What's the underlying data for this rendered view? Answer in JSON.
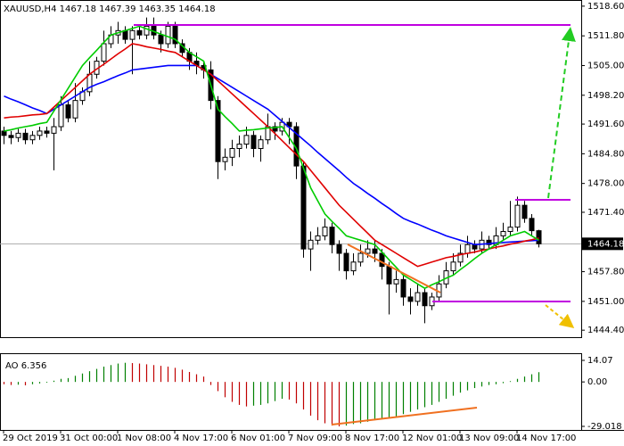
{
  "chart_data": [
    {
      "type": "candlestick",
      "title": "XAUUSD,H4  1467.18 1467.39 1463.35 1464.18",
      "categories": [
        "29 Oct 2019",
        null,
        null,
        null,
        null,
        null,
        null,
        null,
        "31 Oct 00:00",
        null,
        null,
        null,
        null,
        null,
        null,
        null,
        "1 Nov 08:00",
        null,
        null,
        null,
        null,
        null,
        null,
        null,
        "4 Nov 17:00",
        null,
        null,
        null,
        null,
        null,
        null,
        null,
        "6 Nov 01:00",
        null,
        null,
        null,
        null,
        null,
        null,
        null,
        "7 Nov 09:00",
        null,
        null,
        null,
        null,
        null,
        null,
        null,
        "8 Nov 17:00",
        null,
        null,
        null,
        null,
        null,
        null,
        null,
        "12 Nov 01:00",
        null,
        null,
        null,
        null,
        null,
        null,
        null,
        "13 Nov 09:00",
        null,
        null,
        null,
        null,
        null,
        null,
        null,
        "14 Nov 17:00",
        null,
        null,
        null
      ],
      "open": [
        1490,
        1489,
        1488.5,
        1489.5,
        1488,
        1489,
        1490,
        1489.5,
        1491,
        1496,
        1493,
        1497,
        1499,
        1503,
        1506,
        1510,
        1512,
        1513,
        1511,
        1513,
        1512,
        1514,
        1512,
        1510,
        1514,
        1510,
        1508,
        1506,
        1505,
        1504,
        1497,
        1483,
        1484,
        1486,
        1487,
        1489,
        1486,
        1488,
        1491,
        1490,
        1492,
        1491,
        1482,
        1463,
        1465,
        1466,
        1468,
        1464,
        1462,
        1458,
        1460,
        1462,
        1463,
        1462,
        1459,
        1455,
        1456,
        1452,
        1451,
        1453,
        1450,
        1452,
        1455,
        1458,
        1460,
        1462,
        1464,
        1463,
        1465,
        1464,
        1466,
        1467,
        1468,
        1473,
        1470,
        1467.18
      ],
      "high": [
        1491,
        1490,
        1490.5,
        1490.5,
        1490,
        1491,
        1491,
        1493,
        1498,
        1497,
        1501,
        1500,
        1506,
        1507,
        1513,
        1514,
        1515,
        1514,
        1514,
        1514,
        1516,
        1516,
        1513,
        1515,
        1515,
        1511,
        1509,
        1508,
        1506,
        1506,
        1498,
        1486,
        1488,
        1489,
        1491,
        1490,
        1489,
        1494,
        1492,
        1493,
        1493,
        1492,
        1483,
        1467,
        1468,
        1470,
        1469,
        1465,
        1463,
        1462,
        1464,
        1465,
        1465,
        1463,
        1460,
        1458,
        1457,
        1454,
        1455,
        1454,
        1453,
        1457,
        1460,
        1462,
        1464,
        1466,
        1465,
        1467,
        1466,
        1468,
        1469,
        1474,
        1475,
        1474,
        1471,
        1467.39
      ],
      "low": [
        1487,
        1487,
        1487.5,
        1487,
        1487,
        1488,
        1488.5,
        1481,
        1490,
        1492,
        1492,
        1496,
        1498,
        1502,
        1505,
        1509,
        1510,
        1510,
        1503,
        1511,
        1511,
        1511,
        1508,
        1509,
        1509,
        1507,
        1504,
        1503,
        1502,
        1495,
        1479,
        1481,
        1482,
        1484,
        1486,
        1484,
        1483,
        1487,
        1488,
        1489,
        1487,
        1479,
        1461,
        1458,
        1464,
        1465,
        1462,
        1458,
        1456,
        1457,
        1459,
        1461,
        1460,
        1456,
        1448,
        1453,
        1450,
        1448,
        1450,
        1446,
        1449,
        1451,
        1454,
        1457,
        1459,
        1461,
        1462,
        1462,
        1463,
        1463,
        1465,
        1466,
        1467,
        1469,
        1466,
        1463.35
      ],
      "close": [
        1489,
        1488.5,
        1489.5,
        1488,
        1489,
        1490,
        1489.5,
        1491,
        1496,
        1493,
        1497,
        1499,
        1503,
        1506,
        1510,
        1512,
        1513,
        1511,
        1513,
        1512,
        1514,
        1512,
        1510,
        1514,
        1510,
        1508,
        1506,
        1505,
        1504,
        1497,
        1483,
        1484,
        1486,
        1487,
        1489,
        1486,
        1488,
        1491,
        1490,
        1492,
        1491,
        1482,
        1463,
        1465,
        1466,
        1468,
        1464,
        1462,
        1458,
        1460,
        1462,
        1463,
        1462,
        1459,
        1455,
        1456,
        1452,
        1451,
        1453,
        1450,
        1452,
        1455,
        1458,
        1460,
        1462,
        1464,
        1463,
        1465,
        1464,
        1466,
        1467,
        1468,
        1473,
        1470,
        1467.18,
        1464.18
      ],
      "up_color": "#ffffff",
      "down_color": "#000000",
      "wick_color": "#000000",
      "series": [
        {
          "color": "#0000ff",
          "values": [
            1498,
            1497.3,
            1496.7,
            1496,
            1495.3,
            1494.7,
            1494,
            1495,
            1496,
            1497,
            1498,
            1499,
            1500,
            1500.7,
            1501.3,
            1502,
            1502.7,
            1503.3,
            1504,
            1504.2,
            1504.4,
            1504.6,
            1504.8,
            1505,
            1505,
            1505,
            1505,
            1505,
            1504,
            1503,
            1502,
            1501,
            1500,
            1499,
            1498,
            1497,
            1496,
            1495,
            1493.6,
            1492.2,
            1490.8,
            1489.4,
            1488,
            1486.6,
            1485.1,
            1483.7,
            1482.3,
            1480.9,
            1479.4,
            1478,
            1476.9,
            1475.7,
            1474.6,
            1473.4,
            1472.3,
            1471.1,
            1470,
            1469.3,
            1468.7,
            1468,
            1467.3,
            1466.7,
            1466,
            1465.5,
            1465,
            1464.5,
            1464,
            1464.1,
            1464.2,
            1464.4,
            1464.5,
            1464.6,
            1464.7,
            1464.8,
            1464.9,
            1465
          ]
        },
        {
          "color": "#e00000",
          "values": [
            1493,
            1493.2,
            1493.3,
            1493.5,
            1493.7,
            1493.8,
            1494,
            1495.5,
            1497,
            1498.5,
            1500,
            1501.5,
            1503,
            1504.2,
            1505.3,
            1506.5,
            1507.7,
            1508.8,
            1510,
            1509.7,
            1509.3,
            1509,
            1508.7,
            1508.3,
            1508,
            1507,
            1506,
            1505,
            1504,
            1503,
            1501.5,
            1500,
            1498.5,
            1497,
            1495.5,
            1494,
            1492.5,
            1491,
            1489.4,
            1487.8,
            1486.2,
            1484.6,
            1483,
            1481,
            1479,
            1477,
            1475,
            1473,
            1471.4,
            1469.8,
            1468.2,
            1466.6,
            1465,
            1464,
            1463,
            1462,
            1461,
            1460,
            1459,
            1459.5,
            1460,
            1460.5,
            1461,
            1461.3,
            1461.7,
            1462,
            1462.3,
            1462.7,
            1463,
            1463.4,
            1463.7,
            1464.1,
            1464.4,
            1464.8,
            1465.1,
            1465.5
          ]
        },
        {
          "color": "#00cc00",
          "values": [
            1490,
            1490.3,
            1490.7,
            1491,
            1491.3,
            1491.7,
            1492,
            1494.6,
            1497.2,
            1499.8,
            1502.4,
            1505,
            1506.8,
            1508.5,
            1510.3,
            1512,
            1512.5,
            1513,
            1513.5,
            1514,
            1513.4,
            1512.8,
            1512.2,
            1511.6,
            1511,
            1509.5,
            1508,
            1507,
            1506,
            1500.5,
            1495,
            1493.3,
            1491.7,
            1490,
            1490.2,
            1490.3,
            1490.5,
            1490.7,
            1490.8,
            1491,
            1488.5,
            1486,
            1481.5,
            1477,
            1474,
            1471,
            1469.3,
            1467.7,
            1466,
            1465.5,
            1465,
            1464.5,
            1464,
            1462.3,
            1460.5,
            1458.8,
            1457,
            1456,
            1455,
            1454,
            1454.8,
            1455.5,
            1456.3,
            1457,
            1458.3,
            1459.5,
            1460.8,
            1462,
            1463,
            1464,
            1465,
            1466,
            1466.5,
            1467,
            1466,
            1465
          ]
        }
      ],
      "current_price": 1464.18,
      "ylim": [
        1442.8,
        1519.6
      ],
      "yticks": [
        {
          "value": 1518.6,
          "label": "1518.60"
        },
        {
          "value": 1511.8,
          "label": "1511.80"
        },
        {
          "value": 1505,
          "label": "1505.00"
        },
        {
          "value": 1498.2,
          "label": "1498.20"
        },
        {
          "value": 1491.6,
          "label": "1491.60"
        },
        {
          "value": 1484.8,
          "label": "1484.80"
        },
        {
          "value": 1478,
          "label": "1478.00"
        },
        {
          "value": 1471.4,
          "label": "1471.40"
        },
        {
          "value": 1457.8,
          "label": "1457.80"
        },
        {
          "value": 1451,
          "label": "1451.00"
        },
        {
          "value": 1444.4,
          "label": "1444.40"
        }
      ],
      "grid": false
    },
    {
      "type": "bar",
      "title": "AO 6.356",
      "values": [
        -1.5,
        -2,
        -1.8,
        -2.2,
        -1.5,
        -1,
        -0.5,
        0.8,
        2,
        2.5,
        4,
        5.5,
        7,
        8.5,
        10,
        11,
        12,
        12.5,
        12.3,
        12,
        11.5,
        11,
        10.5,
        10,
        9.2,
        8,
        6.5,
        5,
        3.5,
        -2,
        -6,
        -10,
        -13,
        -15,
        -16,
        -15.5,
        -15,
        -14,
        -12.5,
        -11,
        -11.5,
        -14,
        -18,
        -22,
        -25,
        -27,
        -28.5,
        -29,
        -28.5,
        -27.5,
        -27,
        -26,
        -25,
        -24,
        -23,
        -22.5,
        -21,
        -19.5,
        -18,
        -16.5,
        -15,
        -13,
        -11,
        -9,
        -7,
        -5.5,
        -4,
        -3,
        -2,
        -1.5,
        -0.8,
        0.5,
        2,
        3.5,
        5,
        6.356
      ],
      "up_color": "#008000",
      "down_color": "#c00000",
      "ylim": [
        -29.018,
        14.07
      ],
      "yticks": [
        14.07,
        {
          "value": 0,
          "label": "0.00"
        },
        -29.018
      ],
      "grid": false
    }
  ]
}
